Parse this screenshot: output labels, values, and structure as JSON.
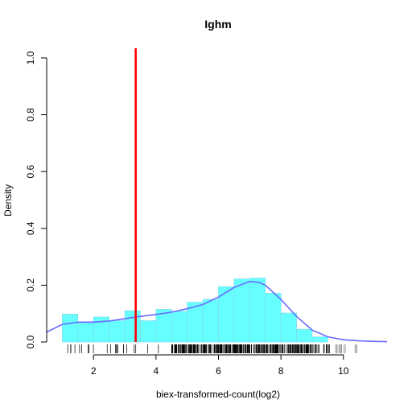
{
  "chart_data": {
    "type": "histogram",
    "title": "Ighm",
    "xlabel": "biex-transformed-count(log2)",
    "ylabel": "Density",
    "xlim": [
      0.5,
      11.5
    ],
    "ylim": [
      0,
      1.0
    ],
    "x_ticks": [
      "2",
      "4",
      "6",
      "8",
      "10"
    ],
    "y_ticks": [
      "0.0",
      "0.2",
      "0.4",
      "0.6",
      "0.8",
      "1.0"
    ],
    "bins": [
      {
        "x0": 1.0,
        "x1": 1.5,
        "density": 0.098
      },
      {
        "x0": 1.5,
        "x1": 2.0,
        "density": 0.068
      },
      {
        "x0": 2.0,
        "x1": 2.5,
        "density": 0.088
      },
      {
        "x0": 2.5,
        "x1": 3.0,
        "density": 0.075
      },
      {
        "x0": 3.0,
        "x1": 3.5,
        "density": 0.11
      },
      {
        "x0": 3.5,
        "x1": 4.0,
        "density": 0.075
      },
      {
        "x0": 4.0,
        "x1": 4.5,
        "density": 0.115
      },
      {
        "x0": 4.5,
        "x1": 5.0,
        "density": 0.108
      },
      {
        "x0": 5.0,
        "x1": 5.5,
        "density": 0.14
      },
      {
        "x0": 5.5,
        "x1": 6.0,
        "density": 0.15
      },
      {
        "x0": 6.0,
        "x1": 6.5,
        "density": 0.195
      },
      {
        "x0": 6.5,
        "x1": 7.0,
        "density": 0.222
      },
      {
        "x0": 7.0,
        "x1": 7.5,
        "density": 0.225
      },
      {
        "x0": 7.5,
        "x1": 8.0,
        "density": 0.172
      },
      {
        "x0": 8.0,
        "x1": 8.5,
        "density": 0.102
      },
      {
        "x0": 8.5,
        "x1": 9.0,
        "density": 0.045
      },
      {
        "x0": 9.0,
        "x1": 9.5,
        "density": 0.018
      }
    ],
    "density_curve": [
      [
        0.5,
        0.035
      ],
      [
        1.0,
        0.062
      ],
      [
        1.5,
        0.07
      ],
      [
        2.0,
        0.07
      ],
      [
        2.5,
        0.074
      ],
      [
        3.0,
        0.082
      ],
      [
        3.5,
        0.09
      ],
      [
        4.0,
        0.097
      ],
      [
        4.5,
        0.105
      ],
      [
        5.0,
        0.117
      ],
      [
        5.5,
        0.132
      ],
      [
        6.0,
        0.158
      ],
      [
        6.5,
        0.192
      ],
      [
        7.0,
        0.213
      ],
      [
        7.3,
        0.21
      ],
      [
        7.5,
        0.2
      ],
      [
        8.0,
        0.15
      ],
      [
        8.5,
        0.09
      ],
      [
        9.0,
        0.042
      ],
      [
        9.5,
        0.018
      ],
      [
        10.0,
        0.008
      ],
      [
        10.5,
        0.004
      ],
      [
        11.0,
        0.002
      ],
      [
        11.4,
        0.001
      ]
    ],
    "threshold_line": {
      "x": 3.35,
      "color": "#ff0000"
    },
    "rug": {
      "x_min": 1.0,
      "x_max": 10.5,
      "dense_from": 4.5,
      "dense_to": 9.0
    },
    "bar_color": "#66ffff",
    "curve_color": "#6a6aff",
    "grid": false
  }
}
